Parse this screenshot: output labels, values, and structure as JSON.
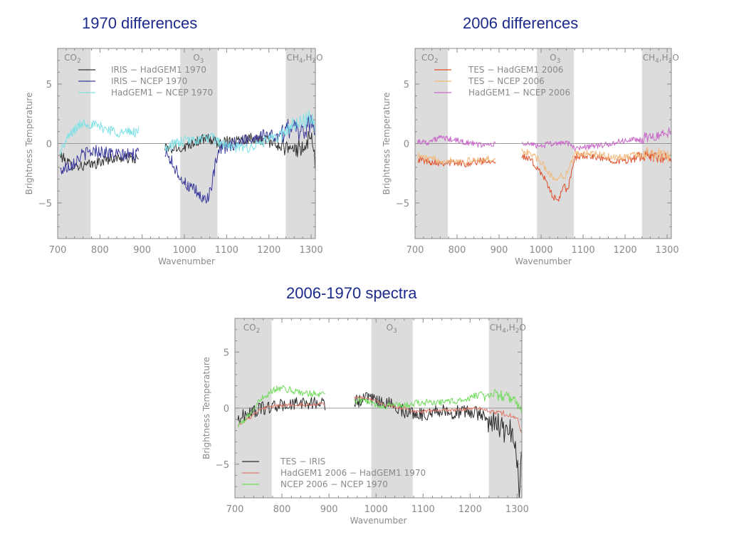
{
  "chart_data": [
    {
      "type": "line",
      "title": "1970 differences",
      "xlabel": "Wavenumber",
      "ylabel": "Brightness Temperature",
      "xlim": [
        700,
        1310
      ],
      "ylim": [
        -8,
        8
      ],
      "xticks": [
        700,
        800,
        900,
        1000,
        1100,
        1200,
        1300
      ],
      "yticks": [
        5,
        0,
        -5
      ],
      "ytick_labels": [
        "5",
        "0",
        "−5"
      ],
      "grid": false,
      "legend_position": "top-left",
      "bands": [
        {
          "label": "CO2",
          "x": [
            700,
            778
          ]
        },
        {
          "label": "O3",
          "x": [
            990,
            1078
          ]
        },
        {
          "label": "CH4,H2O",
          "x": [
            1240,
            1310
          ]
        }
      ],
      "series": [
        {
          "name": "IRIS − HadGEM1 1970",
          "color": "#333333",
          "noise": 0.45,
          "x": [
            706,
            730,
            760,
            790,
            820,
            850,
            890,
            955,
            980,
            1000,
            1020,
            1040,
            1060,
            1070,
            1080,
            1100,
            1130,
            1160,
            1190,
            1220,
            1250,
            1280,
            1300,
            1310
          ],
          "y": [
            -1.0,
            -1.8,
            -1.9,
            -1.7,
            -1.3,
            -1.2,
            -1.3,
            -0.4,
            -0.5,
            -0.3,
            0.1,
            0.3,
            0.4,
            0.2,
            0.0,
            0.2,
            0.3,
            0.5,
            0.3,
            -0.2,
            -0.4,
            -0.5,
            0.5,
            -1.5
          ]
        },
        {
          "name": "IRIS − NCEP 1970",
          "color": "#3b3b9e",
          "noise": 0.55,
          "x": [
            706,
            730,
            760,
            790,
            820,
            850,
            890,
            955,
            980,
            1000,
            1015,
            1030,
            1045,
            1055,
            1065,
            1075,
            1085,
            1100,
            1130,
            1160,
            1190,
            1220,
            1250,
            1280,
            1300,
            1310
          ],
          "y": [
            -2.3,
            -1.8,
            -0.9,
            -0.6,
            -0.8,
            -1.0,
            -0.9,
            -0.5,
            -2.2,
            -3.3,
            -3.8,
            -4.1,
            -4.8,
            -4.5,
            -3.6,
            -1.5,
            -0.5,
            -0.3,
            0.2,
            0.4,
            0.8,
            0.5,
            1.5,
            1.0,
            2.0,
            1.0
          ]
        },
        {
          "name": "HadGEM1 − NCEP 1970",
          "color": "#7fe0e6",
          "noise": 0.45,
          "x": [
            706,
            730,
            760,
            790,
            820,
            850,
            890,
            955,
            980,
            1000,
            1030,
            1060,
            1080,
            1100,
            1130,
            1160,
            1190,
            1220,
            1250,
            1280,
            1300,
            1310
          ],
          "y": [
            -0.7,
            0.8,
            1.8,
            1.5,
            1.2,
            0.9,
            1.0,
            -0.3,
            0.0,
            0.2,
            0.3,
            0.5,
            0.2,
            -0.2,
            -0.4,
            -0.3,
            0.2,
            0.5,
            1.3,
            1.7,
            2.2,
            1.5
          ]
        }
      ]
    },
    {
      "type": "line",
      "title": "2006 differences",
      "xlabel": "Wavenumber",
      "ylabel": "Brightness Temperature",
      "xlim": [
        700,
        1310
      ],
      "ylim": [
        -8,
        8
      ],
      "xticks": [
        700,
        800,
        900,
        1000,
        1100,
        1200,
        1300
      ],
      "yticks": [
        5,
        0,
        -5
      ],
      "ytick_labels": [
        "5",
        "0",
        "−5"
      ],
      "grid": false,
      "legend_position": "top-left",
      "bands": [
        {
          "label": "CO2",
          "x": [
            700,
            778
          ]
        },
        {
          "label": "O3",
          "x": [
            990,
            1078
          ]
        },
        {
          "label": "CH4,H2O",
          "x": [
            1240,
            1310
          ]
        }
      ],
      "series": [
        {
          "name": "TES − HadGEM1 2006",
          "color": "#e0502a",
          "noise": 0.3,
          "x": [
            706,
            730,
            760,
            790,
            820,
            850,
            890,
            955,
            975,
            1000,
            1015,
            1030,
            1038,
            1046,
            1055,
            1063,
            1070,
            1080,
            1100,
            1130,
            1160,
            1190,
            1220,
            1250,
            1280,
            1300,
            1310
          ],
          "y": [
            -1.3,
            -1.5,
            -1.6,
            -1.6,
            -1.7,
            -1.5,
            -1.4,
            -1.1,
            -1.4,
            -2.4,
            -3.5,
            -4.5,
            -4.9,
            -4.3,
            -3.6,
            -4.1,
            -2.8,
            -1.2,
            -1.0,
            -1.2,
            -1.3,
            -1.5,
            -1.3,
            -1.0,
            -1.3,
            -1.2,
            -1.6
          ]
        },
        {
          "name": "TES − NCEP 2006",
          "color": "#f2b87a",
          "noise": 0.3,
          "x": [
            706,
            730,
            760,
            790,
            820,
            850,
            890,
            955,
            975,
            1000,
            1030,
            1060,
            1080,
            1100,
            1130,
            1160,
            1190,
            1220,
            1250,
            1280,
            1300,
            1310
          ],
          "y": [
            -1.0,
            -1.3,
            -1.4,
            -1.4,
            -1.5,
            -1.4,
            -1.3,
            -0.7,
            -0.8,
            -1.6,
            -3.0,
            -2.6,
            -0.9,
            -0.8,
            -0.9,
            -1.1,
            -1.2,
            -1.0,
            -0.8,
            -1.0,
            -0.9,
            -1.3
          ]
        },
        {
          "name": "HadGEM1 − NCEP 2006",
          "color": "#c969c9",
          "noise": 0.25,
          "x": [
            706,
            730,
            760,
            790,
            820,
            850,
            890,
            955,
            980,
            1000,
            1030,
            1060,
            1080,
            1100,
            1130,
            1160,
            1190,
            1220,
            1250,
            1280,
            1300,
            1310
          ],
          "y": [
            0.2,
            0.1,
            0.5,
            0.3,
            0.1,
            -0.1,
            -0.1,
            0.0,
            -0.1,
            -0.2,
            0.0,
            0.1,
            -0.4,
            -0.3,
            -0.2,
            -0.1,
            0.2,
            0.3,
            0.4,
            0.6,
            0.8,
            1.0
          ]
        }
      ]
    },
    {
      "type": "line",
      "title": "2006-1970 spectra",
      "xlabel": "Wavenumber",
      "ylabel": "Brightness Temperature",
      "xlim": [
        700,
        1310
      ],
      "ylim": [
        -8,
        8
      ],
      "xticks": [
        700,
        800,
        900,
        1000,
        1100,
        1200,
        1300
      ],
      "yticks": [
        5,
        0,
        -5
      ],
      "ytick_labels": [
        "5",
        "0",
        "−5"
      ],
      "grid": false,
      "legend_position": "bottom-left",
      "bands": [
        {
          "label": "CO2",
          "x": [
            700,
            778
          ]
        },
        {
          "label": "O3",
          "x": [
            990,
            1078
          ]
        },
        {
          "label": "CH4,H2O",
          "x": [
            1240,
            1310
          ]
        }
      ],
      "series": [
        {
          "name": "TES − IRIS",
          "color": "#2b2b2b",
          "noise": 0.6,
          "x": [
            706,
            730,
            760,
            790,
            820,
            850,
            890,
            955,
            980,
            1000,
            1020,
            1040,
            1060,
            1080,
            1100,
            1130,
            1160,
            1190,
            1220,
            1250,
            1270,
            1285,
            1295,
            1300,
            1305,
            1310
          ],
          "y": [
            -1.0,
            -0.4,
            0.0,
            0.2,
            0.3,
            0.5,
            0.4,
            0.6,
            0.8,
            0.6,
            0.5,
            0.2,
            -0.3,
            -0.4,
            -0.6,
            -0.2,
            -0.4,
            -0.3,
            -0.5,
            -1.2,
            -1.8,
            -2.2,
            -3.0,
            -4.5,
            -7.5,
            -3.0
          ]
        },
        {
          "name": "HadGEM1 2006 − HadGEM1 1970",
          "color": "#e07a6a",
          "noise": 0.15,
          "x": [
            706,
            730,
            760,
            790,
            820,
            850,
            890,
            955,
            980,
            1000,
            1020,
            1040,
            1060,
            1080,
            1100,
            1130,
            1160,
            1190,
            1220,
            1250,
            1280,
            1300,
            1310
          ],
          "y": [
            -1.5,
            -0.9,
            0.0,
            0.2,
            0.3,
            0.3,
            0.4,
            0.9,
            0.9,
            0.6,
            0.3,
            0.1,
            0.0,
            -0.3,
            -0.3,
            -0.2,
            -0.2,
            -0.1,
            0.0,
            -0.3,
            -0.6,
            -0.8,
            -2.5
          ]
        },
        {
          "name": "NCEP 2006 − NCEP 1970",
          "color": "#6fdc5a",
          "noise": 0.3,
          "x": [
            706,
            730,
            760,
            790,
            820,
            850,
            890,
            955,
            980,
            1000,
            1020,
            1040,
            1060,
            1080,
            1100,
            1130,
            1160,
            1190,
            1220,
            1250,
            1280,
            1300,
            1310
          ],
          "y": [
            -1.7,
            -0.6,
            1.0,
            1.8,
            1.6,
            1.3,
            1.3,
            0.7,
            0.6,
            0.3,
            0.2,
            0.3,
            0.2,
            0.4,
            0.5,
            0.5,
            0.6,
            0.8,
            1.2,
            1.3,
            1.0,
            0.5,
            -0.5
          ]
        }
      ]
    }
  ]
}
